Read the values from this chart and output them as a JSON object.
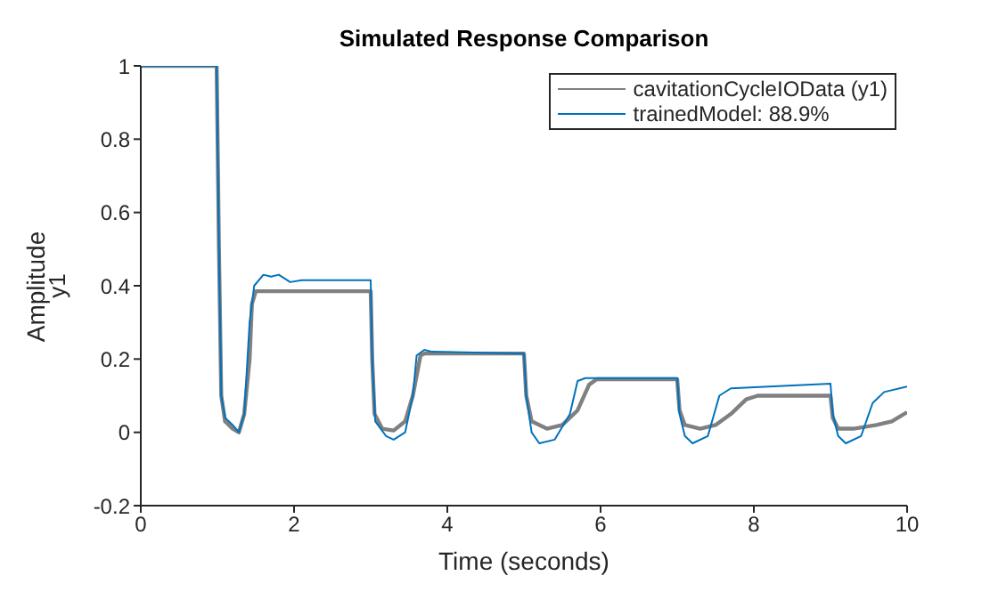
{
  "chart_data": {
    "type": "line",
    "title": "Simulated Response Comparison",
    "xlabel": "Time (seconds)",
    "ylabel": "Amplitude",
    "annotations": [
      "y1"
    ],
    "xlim": [
      0,
      10
    ],
    "xticks": [
      0,
      2,
      4,
      6,
      8,
      10
    ],
    "ylim": [
      -0.2,
      1
    ],
    "yticks": [
      -0.2,
      0,
      0.2,
      0.4,
      0.6,
      0.8,
      1
    ],
    "grid": false,
    "legend": "top right",
    "marker": "none",
    "line_style": "solid",
    "series": [
      {
        "name": "cavitationCycleIOData (y1)",
        "color": "#808080",
        "x": [
          0,
          0.99,
          1.02,
          1.05,
          1.1,
          1.2,
          1.28,
          1.35,
          1.42,
          1.45,
          1.5,
          3.0,
          3.02,
          3.05,
          3.15,
          3.3,
          3.45,
          3.55,
          3.65,
          3.7,
          5.0,
          5.03,
          5.1,
          5.3,
          5.5,
          5.7,
          5.85,
          5.95,
          7.0,
          7.03,
          7.1,
          7.3,
          7.5,
          7.7,
          7.9,
          8.05,
          9.0,
          9.03,
          9.1,
          9.3,
          9.6,
          9.8,
          10
        ],
        "values": [
          1,
          1,
          0.5,
          0.1,
          0.03,
          0.01,
          0.0,
          0.05,
          0.2,
          0.35,
          0.385,
          0.385,
          0.2,
          0.05,
          0.01,
          0.005,
          0.03,
          0.1,
          0.21,
          0.215,
          0.215,
          0.1,
          0.03,
          0.01,
          0.02,
          0.06,
          0.13,
          0.145,
          0.145,
          0.06,
          0.02,
          0.01,
          0.02,
          0.05,
          0.09,
          0.1,
          0.1,
          0.04,
          0.01,
          0.01,
          0.02,
          0.03,
          0.055
        ]
      },
      {
        "name": "trainedModel: 88.9%",
        "color": "#0072bd",
        "x": [
          0,
          0.99,
          1.02,
          1.05,
          1.1,
          1.2,
          1.28,
          1.35,
          1.42,
          1.48,
          1.6,
          1.7,
          1.8,
          1.95,
          2.1,
          3.0,
          3.02,
          3.06,
          3.2,
          3.3,
          3.45,
          3.55,
          3.6,
          3.7,
          3.8,
          5.0,
          5.03,
          5.1,
          5.2,
          5.4,
          5.6,
          5.7,
          5.8,
          7.0,
          7.03,
          7.1,
          7.2,
          7.4,
          7.55,
          7.7,
          9.0,
          9.03,
          9.1,
          9.2,
          9.4,
          9.55,
          9.7,
          10
        ],
        "values": [
          1,
          1,
          0.5,
          0.1,
          0.04,
          0.02,
          0.0,
          0.05,
          0.3,
          0.4,
          0.43,
          0.425,
          0.43,
          0.41,
          0.415,
          0.415,
          0.2,
          0.03,
          -0.01,
          -0.02,
          0.0,
          0.1,
          0.21,
          0.225,
          0.22,
          0.215,
          0.1,
          0.0,
          -0.03,
          -0.02,
          0.05,
          0.14,
          0.148,
          0.148,
          0.05,
          -0.01,
          -0.03,
          -0.01,
          0.1,
          0.12,
          0.133,
          0.05,
          -0.01,
          -0.03,
          -0.01,
          0.08,
          0.11,
          0.125
        ]
      }
    ]
  }
}
